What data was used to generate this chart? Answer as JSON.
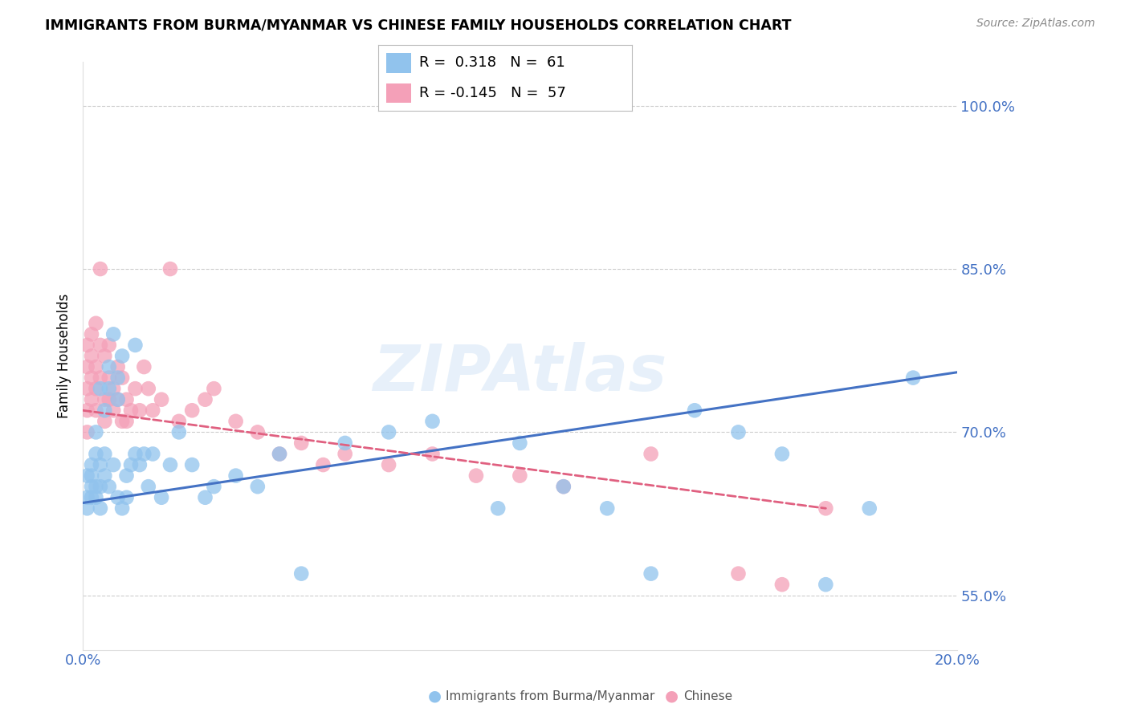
{
  "title": "IMMIGRANTS FROM BURMA/MYANMAR VS CHINESE FAMILY HOUSEHOLDS CORRELATION CHART",
  "source": "Source: ZipAtlas.com",
  "ylabel": "Family Households",
  "xlim": [
    0.0,
    0.2
  ],
  "ylim": [
    0.5,
    1.04
  ],
  "xtick_positions": [
    0.0,
    0.04,
    0.08,
    0.12,
    0.16,
    0.2
  ],
  "xtick_labels": [
    "0.0%",
    "",
    "",
    "",
    "",
    "20.0%"
  ],
  "ytick_vals_right": [
    0.55,
    0.7,
    0.85,
    1.0
  ],
  "ytick_labels_right": [
    "55.0%",
    "70.0%",
    "85.0%",
    "100.0%"
  ],
  "blue_color": "#91C3ED",
  "pink_color": "#F4A0B8",
  "blue_line_color": "#4472C4",
  "pink_line_color": "#E06080",
  "watermark": "ZIPAtlas",
  "blue_trend_x": [
    0.0,
    0.2
  ],
  "blue_trend_y": [
    0.635,
    0.755
  ],
  "pink_trend_x": [
    0.0,
    0.17
  ],
  "pink_trend_y": [
    0.72,
    0.63
  ],
  "blue_scatter_x": [
    0.001,
    0.001,
    0.001,
    0.002,
    0.002,
    0.002,
    0.002,
    0.003,
    0.003,
    0.003,
    0.003,
    0.004,
    0.004,
    0.004,
    0.004,
    0.005,
    0.005,
    0.005,
    0.006,
    0.006,
    0.006,
    0.007,
    0.007,
    0.008,
    0.008,
    0.008,
    0.009,
    0.009,
    0.01,
    0.01,
    0.011,
    0.012,
    0.012,
    0.013,
    0.014,
    0.015,
    0.016,
    0.018,
    0.02,
    0.022,
    0.025,
    0.028,
    0.03,
    0.035,
    0.04,
    0.045,
    0.05,
    0.06,
    0.07,
    0.08,
    0.095,
    0.1,
    0.11,
    0.12,
    0.13,
    0.14,
    0.15,
    0.16,
    0.17,
    0.18,
    0.19
  ],
  "blue_scatter_y": [
    0.66,
    0.64,
    0.63,
    0.65,
    0.67,
    0.64,
    0.66,
    0.65,
    0.64,
    0.68,
    0.7,
    0.63,
    0.65,
    0.67,
    0.74,
    0.66,
    0.72,
    0.68,
    0.65,
    0.76,
    0.74,
    0.67,
    0.79,
    0.64,
    0.73,
    0.75,
    0.63,
    0.77,
    0.64,
    0.66,
    0.67,
    0.68,
    0.78,
    0.67,
    0.68,
    0.65,
    0.68,
    0.64,
    0.67,
    0.7,
    0.67,
    0.64,
    0.65,
    0.66,
    0.65,
    0.68,
    0.57,
    0.69,
    0.7,
    0.71,
    0.63,
    0.69,
    0.65,
    0.63,
    0.57,
    0.72,
    0.7,
    0.68,
    0.56,
    0.63,
    0.75
  ],
  "pink_scatter_x": [
    0.001,
    0.001,
    0.001,
    0.001,
    0.001,
    0.002,
    0.002,
    0.002,
    0.002,
    0.003,
    0.003,
    0.003,
    0.003,
    0.004,
    0.004,
    0.004,
    0.005,
    0.005,
    0.005,
    0.006,
    0.006,
    0.006,
    0.007,
    0.007,
    0.008,
    0.008,
    0.009,
    0.009,
    0.01,
    0.01,
    0.011,
    0.012,
    0.013,
    0.014,
    0.015,
    0.016,
    0.018,
    0.02,
    0.022,
    0.025,
    0.028,
    0.03,
    0.035,
    0.04,
    0.045,
    0.05,
    0.055,
    0.06,
    0.07,
    0.08,
    0.09,
    0.1,
    0.11,
    0.13,
    0.15,
    0.16,
    0.17
  ],
  "pink_scatter_y": [
    0.76,
    0.78,
    0.74,
    0.72,
    0.7,
    0.77,
    0.79,
    0.75,
    0.73,
    0.8,
    0.76,
    0.74,
    0.72,
    0.85,
    0.78,
    0.75,
    0.77,
    0.73,
    0.71,
    0.75,
    0.78,
    0.73,
    0.74,
    0.72,
    0.76,
    0.73,
    0.71,
    0.75,
    0.73,
    0.71,
    0.72,
    0.74,
    0.72,
    0.76,
    0.74,
    0.72,
    0.73,
    0.85,
    0.71,
    0.72,
    0.73,
    0.74,
    0.71,
    0.7,
    0.68,
    0.69,
    0.67,
    0.68,
    0.67,
    0.68,
    0.66,
    0.66,
    0.65,
    0.68,
    0.57,
    0.56,
    0.63
  ]
}
